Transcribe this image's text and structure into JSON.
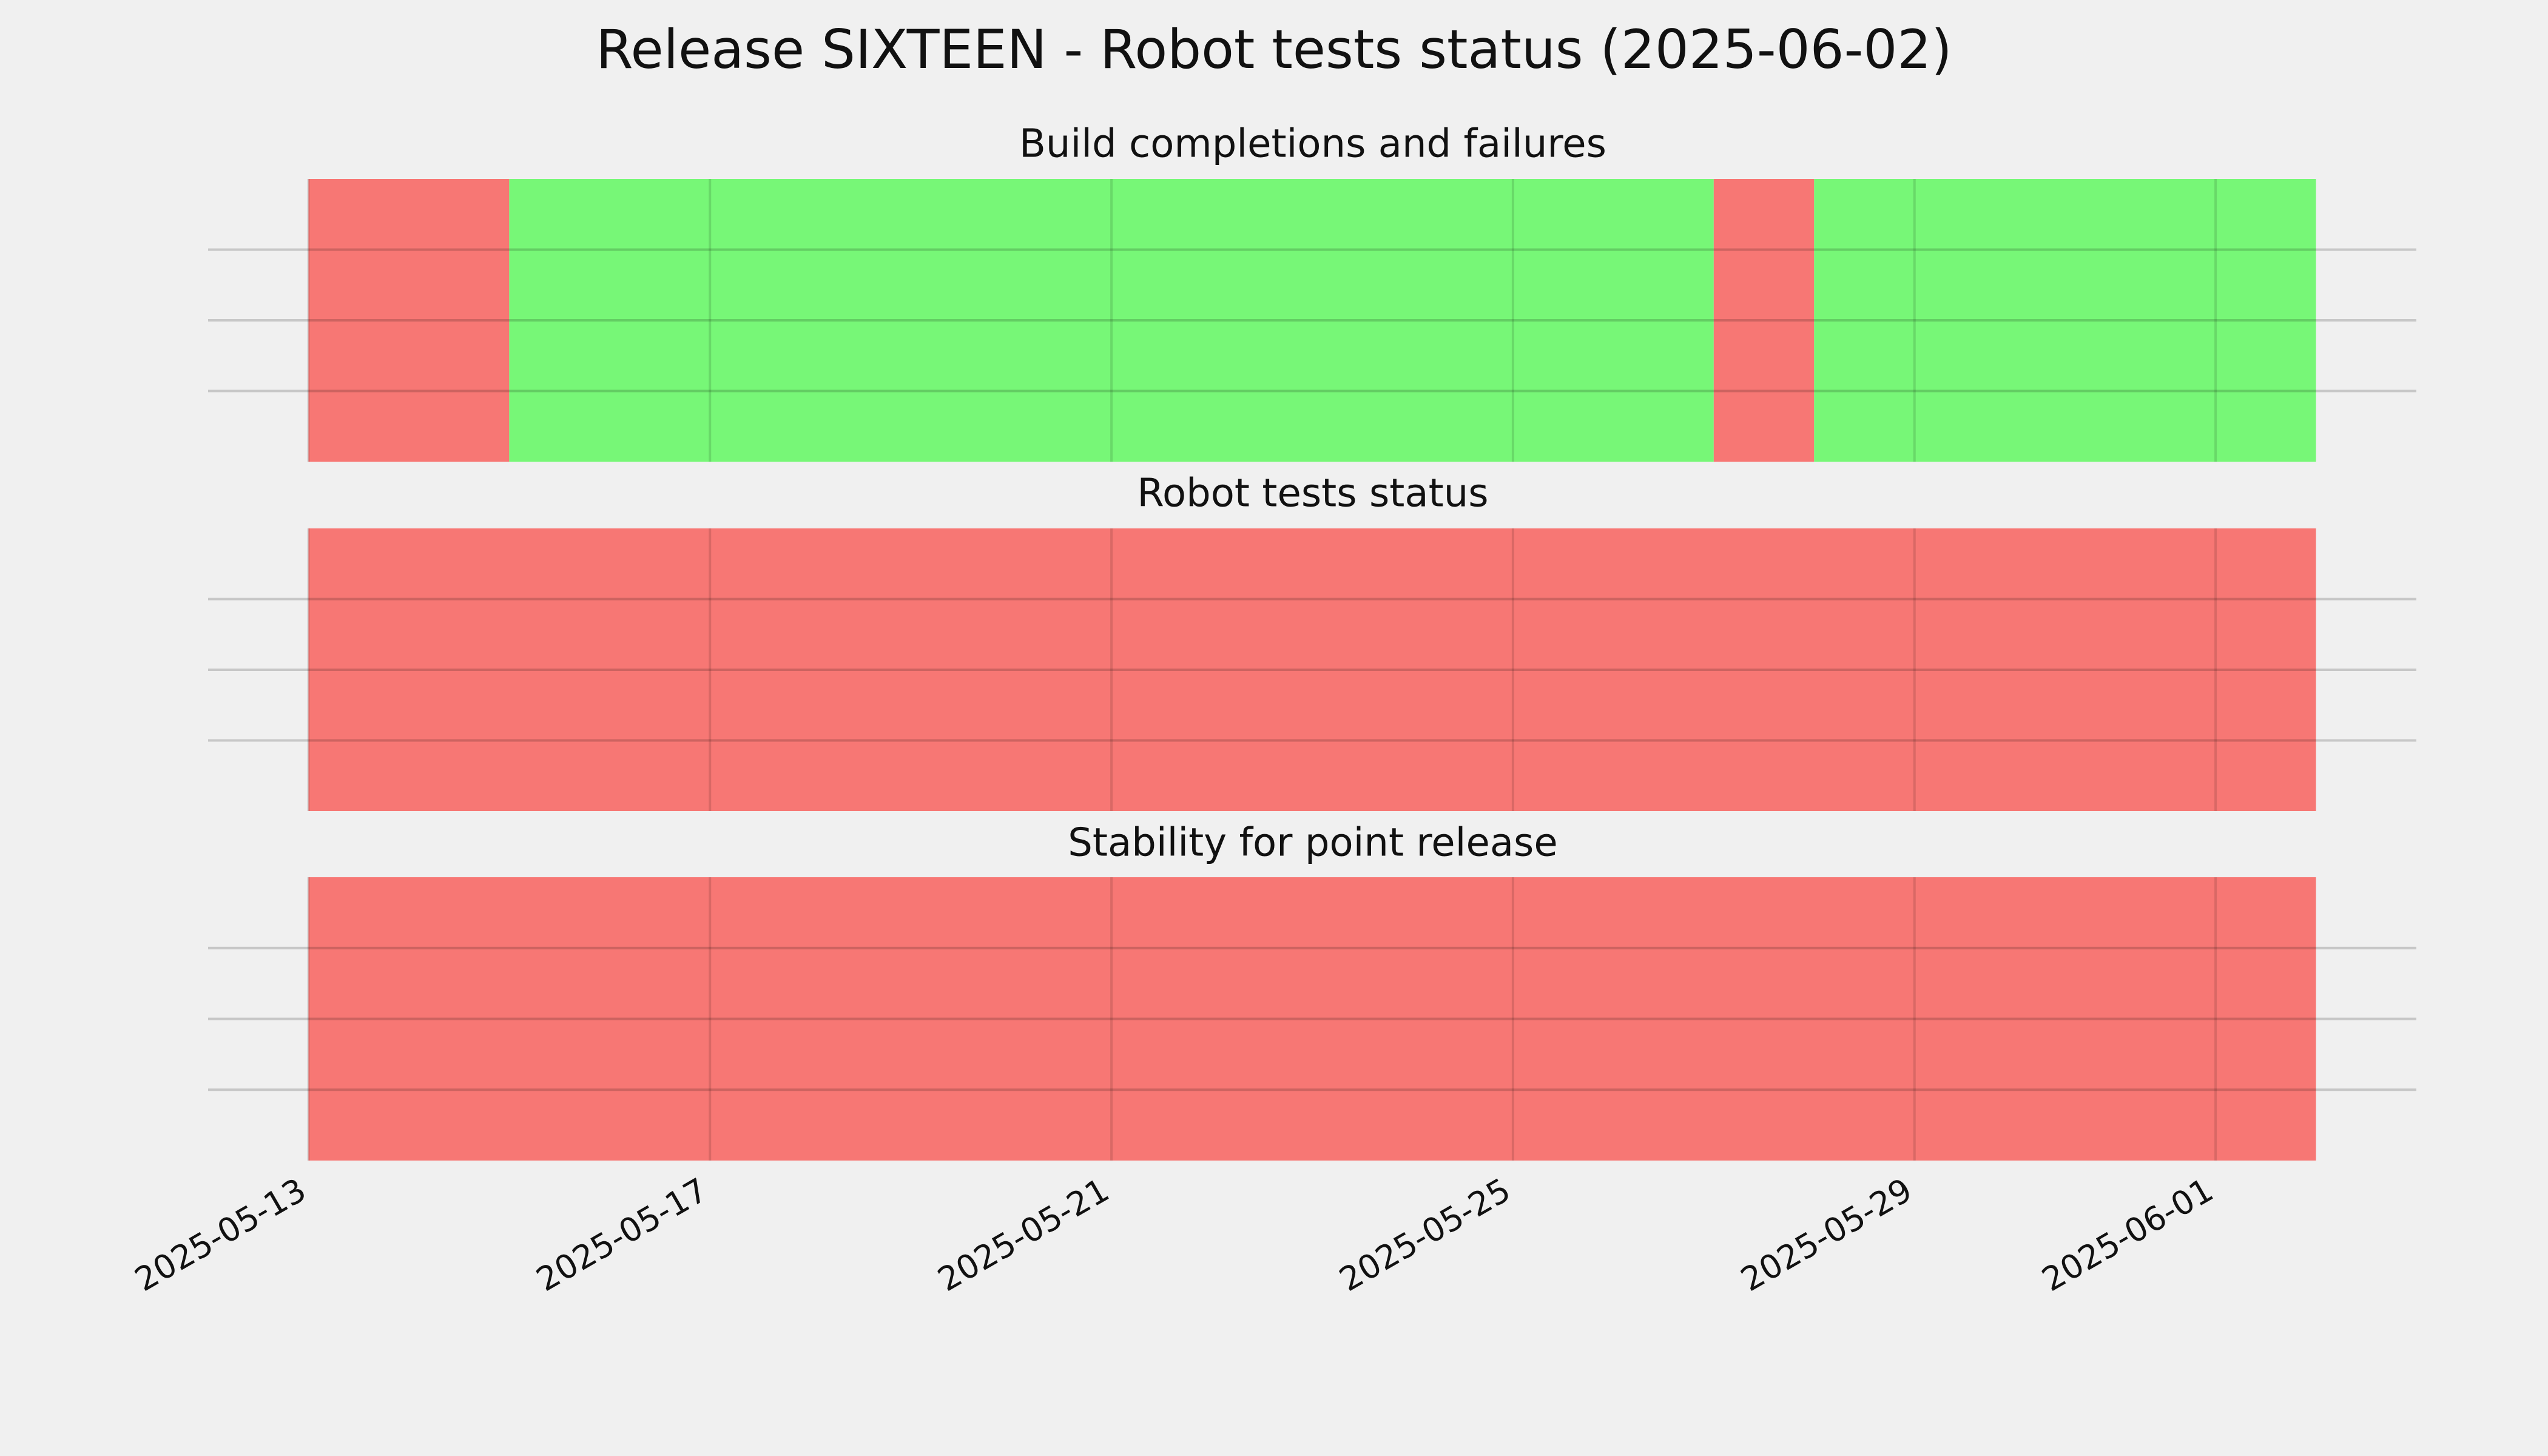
{
  "title": "Release SIXTEEN - Robot tests status (2025-06-02)",
  "chart_data": [
    {
      "type": "timeline",
      "title": "Build completions and failures",
      "starts": [
        "2025-05-13",
        "2025-05-15",
        "2025-05-27",
        "2025-05-28"
      ],
      "ends": [
        "2025-05-15",
        "2025-05-27",
        "2025-05-28",
        "2025-06-02"
      ],
      "colors": [
        "#f77774",
        "#77f777",
        "#f77774",
        "#77f777"
      ],
      "xlim": [
        "2025-05-12",
        "2025-06-03"
      ],
      "xticks": [
        "2025-05-13",
        "2025-05-17",
        "2025-05-21",
        "2025-05-25",
        "2025-05-29",
        "2025-06-01"
      ],
      "ylim": [
        0,
        1
      ],
      "yticks": [
        0.25,
        0.5,
        0.75
      ],
      "grid": true
    },
    {
      "type": "timeline",
      "title": "Robot tests status",
      "starts": [
        "2025-05-13"
      ],
      "ends": [
        "2025-06-02"
      ],
      "colors": [
        "#f77774"
      ],
      "xlim": [
        "2025-05-12",
        "2025-06-03"
      ],
      "xticks": [
        "2025-05-13",
        "2025-05-17",
        "2025-05-21",
        "2025-05-25",
        "2025-05-29",
        "2025-06-01"
      ],
      "ylim": [
        0,
        1
      ],
      "yticks": [
        0.25,
        0.5,
        0.75
      ],
      "grid": true
    },
    {
      "type": "timeline",
      "title": "Stability for point release",
      "starts": [
        "2025-05-13"
      ],
      "ends": [
        "2025-06-02"
      ],
      "colors": [
        "#f77774"
      ],
      "xlim": [
        "2025-05-12",
        "2025-06-03"
      ],
      "xticks": [
        "2025-05-13",
        "2025-05-17",
        "2025-05-21",
        "2025-05-25",
        "2025-05-29",
        "2025-06-01"
      ],
      "ylim": [
        0,
        1
      ],
      "yticks": [
        0.25,
        0.5,
        0.75
      ],
      "grid": true
    }
  ]
}
